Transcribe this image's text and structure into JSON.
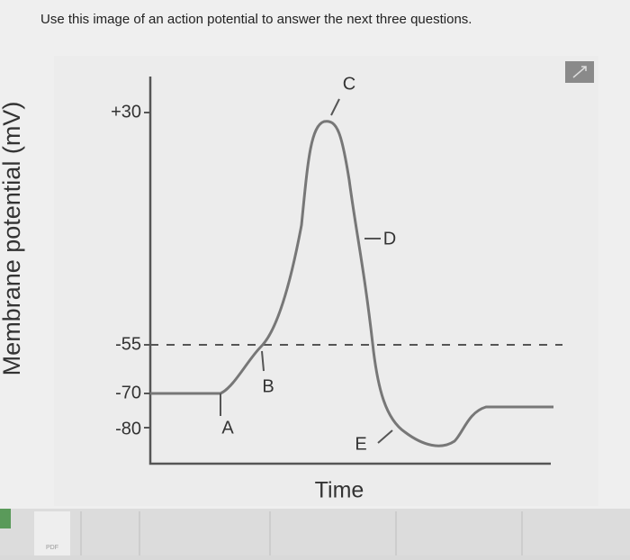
{
  "header": {
    "instruction": "Use this image of an action potential to answer the next three questions."
  },
  "diagram": {
    "y_axis_label": "Membrane potential (mV)",
    "x_axis_label": "Time",
    "y_labels": [
      "+30",
      "-55",
      "-70",
      "-80"
    ],
    "points": [
      "A",
      "B",
      "C",
      "D",
      "E"
    ]
  },
  "footer": {
    "file_label": "PDF"
  }
}
